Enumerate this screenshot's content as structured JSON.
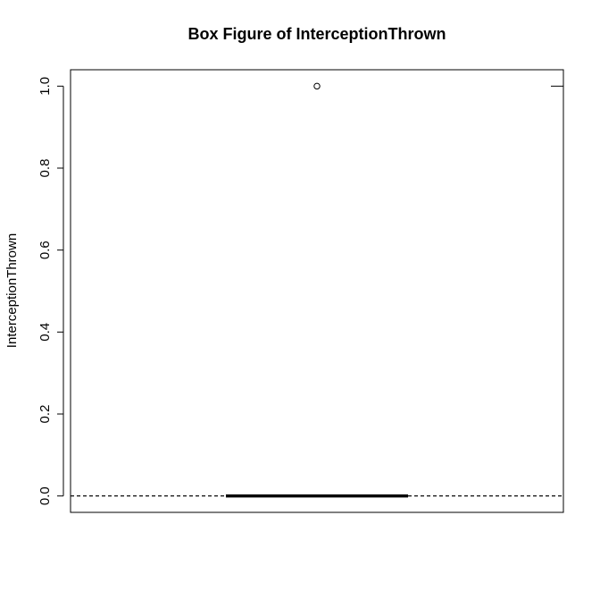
{
  "chart_data": {
    "type": "box",
    "title": "Box Figure of InterceptionThrown",
    "xlabel": "",
    "ylabel": "InterceptionThrown",
    "ylim": [
      -0.04,
      1.04
    ],
    "yticks": [
      0.0,
      0.2,
      0.4,
      0.6,
      0.8,
      1.0
    ],
    "ytick_labels": [
      "0.0",
      "0.2",
      "0.4",
      "0.6",
      "0.8",
      "1.0"
    ],
    "grid": false,
    "box": {
      "min": 0.0,
      "q1": 0.0,
      "median": 0.0,
      "q3": 0.0,
      "max": 0.0
    },
    "outliers": [
      1.0
    ]
  }
}
